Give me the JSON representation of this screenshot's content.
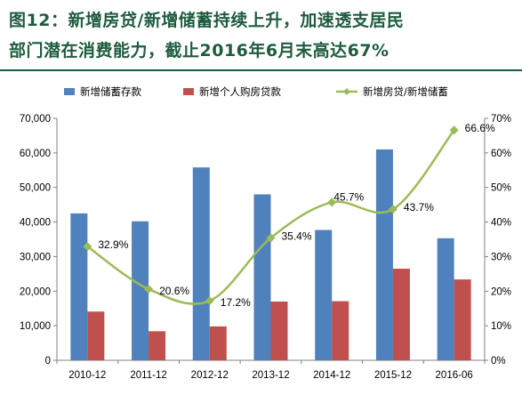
{
  "title": {
    "line1": "图12：新增房贷/新增储蓄持续上升，加速透支居民",
    "line2": "部门潜在消费能力，截止2016年6月末高达67%"
  },
  "chart_data": {
    "type": "bar",
    "categories": [
      "2010-12",
      "2011-12",
      "2012-12",
      "2013-12",
      "2014-12",
      "2015-12",
      "2016-06"
    ],
    "series": [
      {
        "name": "新增储蓄存款",
        "type": "bar",
        "axis": "left",
        "color": "#4f81bd",
        "values": [
          42500,
          40200,
          55800,
          48000,
          37700,
          61000,
          35300
        ]
      },
      {
        "name": "新增个人购房贷款",
        "type": "bar",
        "axis": "left",
        "color": "#c0504d",
        "values": [
          14100,
          8400,
          9800,
          17000,
          17100,
          26500,
          23400
        ]
      },
      {
        "name": "新增房贷/新增储蓄",
        "type": "line",
        "axis": "right",
        "color": "#9bbb59",
        "values": [
          32.9,
          20.6,
          17.2,
          35.4,
          45.7,
          43.7,
          66.6
        ],
        "labels": [
          "32.9%",
          "20.6%",
          "17.2%",
          "35.4%",
          "45.7%",
          "43.7%",
          "66.6%"
        ]
      }
    ],
    "y_left": {
      "min": 0,
      "max": 70000,
      "ticks": [
        "0",
        "10,000",
        "20,000",
        "30,000",
        "40,000",
        "50,000",
        "60,000",
        "70,000"
      ]
    },
    "y_right": {
      "min": 0,
      "max": 70,
      "ticks": [
        "0%",
        "10%",
        "20%",
        "30%",
        "40%",
        "50%",
        "60%",
        "70%"
      ]
    },
    "legend_position": "top",
    "grid": false
  }
}
